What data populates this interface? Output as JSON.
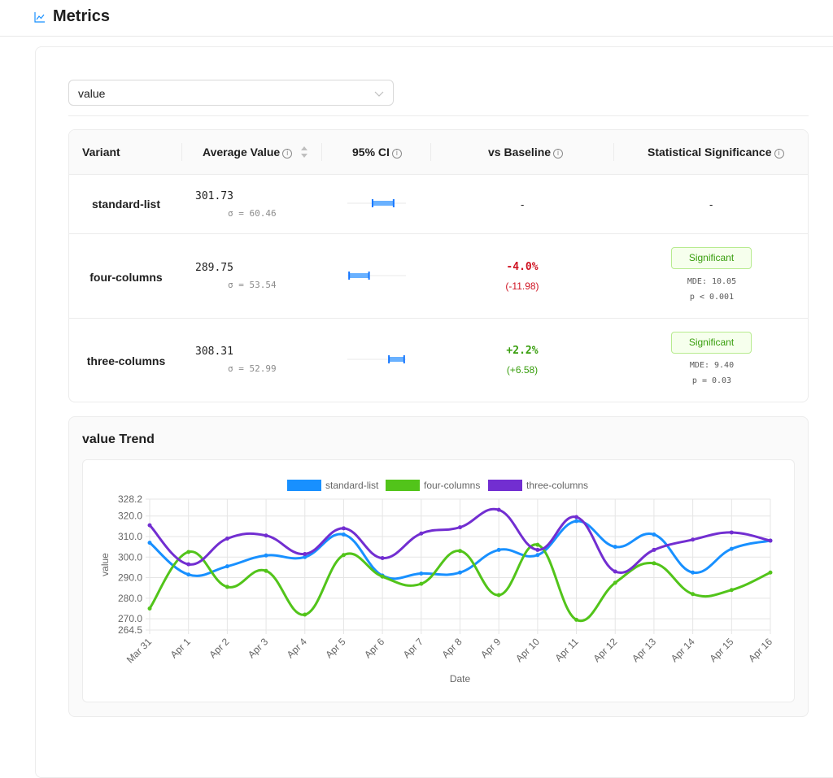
{
  "header": {
    "title": "Metrics",
    "icon": "line-chart-icon"
  },
  "metric_select": {
    "value": "value"
  },
  "table": {
    "columns": {
      "variant": "Variant",
      "average": "Average Value",
      "ci": "95% CI",
      "baseline": "vs Baseline",
      "significance": "Statistical Significance"
    },
    "rows": [
      {
        "variant": "standard-list",
        "avg": "301.73",
        "sigma": "σ = 60.46",
        "baseline": "-",
        "significance": "-",
        "ci_low": 0.43,
        "ci_high": 0.79
      },
      {
        "variant": "four-columns",
        "avg": "289.75",
        "sigma": "σ = 53.54",
        "pct": "-4.0%",
        "abs": "(-11.98)",
        "badge": "Significant",
        "mde": "MDE: 10.05",
        "p": "p < 0.001",
        "ci_low": 0.03,
        "ci_high": 0.37
      },
      {
        "variant": "three-columns",
        "avg": "308.31",
        "sigma": "σ = 52.99",
        "pct": "+2.2%",
        "abs": "(+6.58)",
        "badge": "Significant",
        "mde": "MDE: 9.40",
        "p": "p = 0.03",
        "ci_low": 0.71,
        "ci_high": 0.97
      }
    ]
  },
  "trend": {
    "title": "value Trend"
  },
  "chart_data": {
    "type": "line",
    "xlabel": "Date",
    "ylabel": "value",
    "ylim": [
      264.5,
      328.2
    ],
    "yticks": [
      264.5,
      270.0,
      280.0,
      290.0,
      300.0,
      310.0,
      320.0,
      328.2
    ],
    "ytick_labels": [
      "264.5",
      "270.0",
      "280.0",
      "290.0",
      "300.0",
      "310.0",
      "320.0",
      "328.2"
    ],
    "grid": true,
    "legend": "top-center",
    "categories": [
      "Mar 31",
      "Apr 1",
      "Apr 2",
      "Apr 3",
      "Apr 4",
      "Apr 5",
      "Apr 6",
      "Apr 7",
      "Apr 8",
      "Apr 9",
      "Apr 10",
      "Apr 11",
      "Apr 12",
      "Apr 13",
      "Apr 14",
      "Apr 15",
      "Apr 16"
    ],
    "series": [
      {
        "name": "standard-list",
        "color": "#1890ff",
        "values": [
          307.0,
          291.5,
          295.5,
          300.8,
          300.0,
          311.0,
          291.0,
          292.0,
          292.5,
          303.5,
          301.0,
          317.5,
          305.0,
          311.0,
          292.5,
          304.0,
          308.0
        ]
      },
      {
        "name": "four-columns",
        "color": "#52c41a",
        "values": [
          275.0,
          302.5,
          285.5,
          293.3,
          272.0,
          301.0,
          290.5,
          287.0,
          303.0,
          281.5,
          306.0,
          269.5,
          287.5,
          297.0,
          282.0,
          284.0,
          292.5
        ]
      },
      {
        "name": "three-columns",
        "color": "#722ed1",
        "values": [
          315.5,
          296.5,
          309.0,
          310.5,
          301.5,
          314.0,
          299.5,
          311.5,
          314.5,
          323.0,
          303.5,
          319.5,
          293.0,
          303.5,
          308.5,
          312.0,
          308.0
        ]
      }
    ]
  }
}
